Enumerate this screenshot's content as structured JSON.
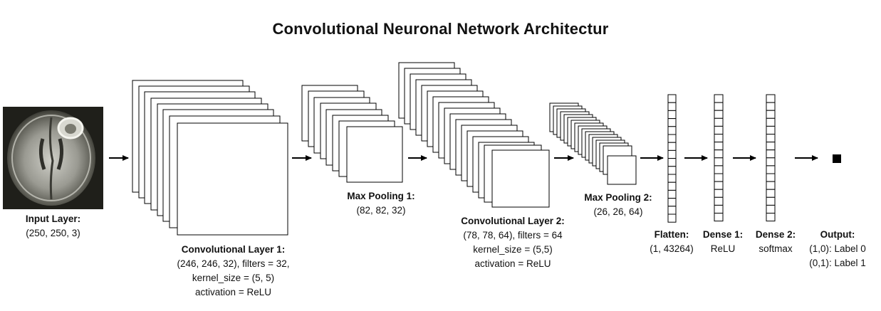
{
  "title": "Convolutional Neuronal Network Architectur",
  "layers": {
    "input": {
      "name": "Input Layer:",
      "shape": "(250, 250, 3)"
    },
    "conv1": {
      "name": "Convolutional Layer 1:",
      "shape_filters": "(246, 246, 32), filters = 32,",
      "kernel": "kernel_size = (5, 5)",
      "activation": "activation = ReLU"
    },
    "pool1": {
      "name": "Max Pooling 1:",
      "shape": "(82, 82, 32)"
    },
    "conv2": {
      "name": "Convolutional Layer 2:",
      "shape_filters": "(78, 78, 64), filters = 64",
      "kernel": "kernel_size = (5,5)",
      "activation": "activation = ReLU"
    },
    "pool2": {
      "name": "Max Pooling 2:",
      "shape": "(26, 26, 64)"
    },
    "flatten": {
      "name": "Flatten:",
      "shape": "(1, 43264)"
    },
    "dense1": {
      "name": "Dense 1:",
      "activation": "ReLU"
    },
    "dense2": {
      "name": "Dense 2:",
      "activation": "softmax"
    },
    "output": {
      "name": "Output:",
      "label0": "(1,0): Label 0",
      "label1": "(0,1): Label 1"
    }
  },
  "colors": {
    "stroke": "#000000",
    "fill": "#ffffff"
  }
}
